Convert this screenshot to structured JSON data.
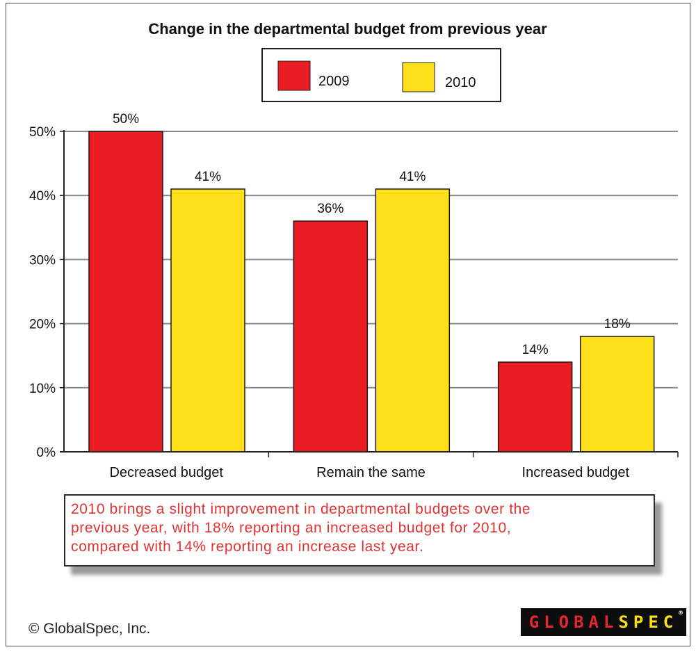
{
  "chart_data": {
    "type": "bar",
    "title": "Change in the departmental budget from previous year",
    "categories": [
      "Decreased budget",
      "Remain the same",
      "Increased budget"
    ],
    "series": [
      {
        "name": "2009",
        "values": [
          50,
          36,
          14
        ],
        "labels": [
          "50%",
          "36%",
          "14%"
        ],
        "color": "#ea1d25"
      },
      {
        "name": "2010",
        "values": [
          41,
          41,
          18
        ],
        "labels": [
          "41%",
          "41%",
          "18%"
        ],
        "color": "#fde01a"
      }
    ],
    "y_ticks": [
      0,
      10,
      20,
      30,
      40,
      50
    ],
    "y_tick_labels": [
      "0%",
      "10%",
      "20%",
      "30%",
      "40%",
      "50%"
    ],
    "ylim": [
      0,
      50
    ],
    "unit": "%",
    "grid": true,
    "legend_position": "top-center",
    "xlabel": "",
    "ylabel": ""
  },
  "note": {
    "lines": [
      "2010 brings a slight improvement in departmental budgets over the",
      "previous year, with 18% reporting an increased budget for 2010,",
      "compared with 14% reporting an increase last year."
    ],
    "color": "#e23232"
  },
  "footer": {
    "copyright": "© GlobalSpec, Inc.",
    "logo_part1": "GLOBAL",
    "logo_part2": "SPEC",
    "logo_mark": "®"
  }
}
